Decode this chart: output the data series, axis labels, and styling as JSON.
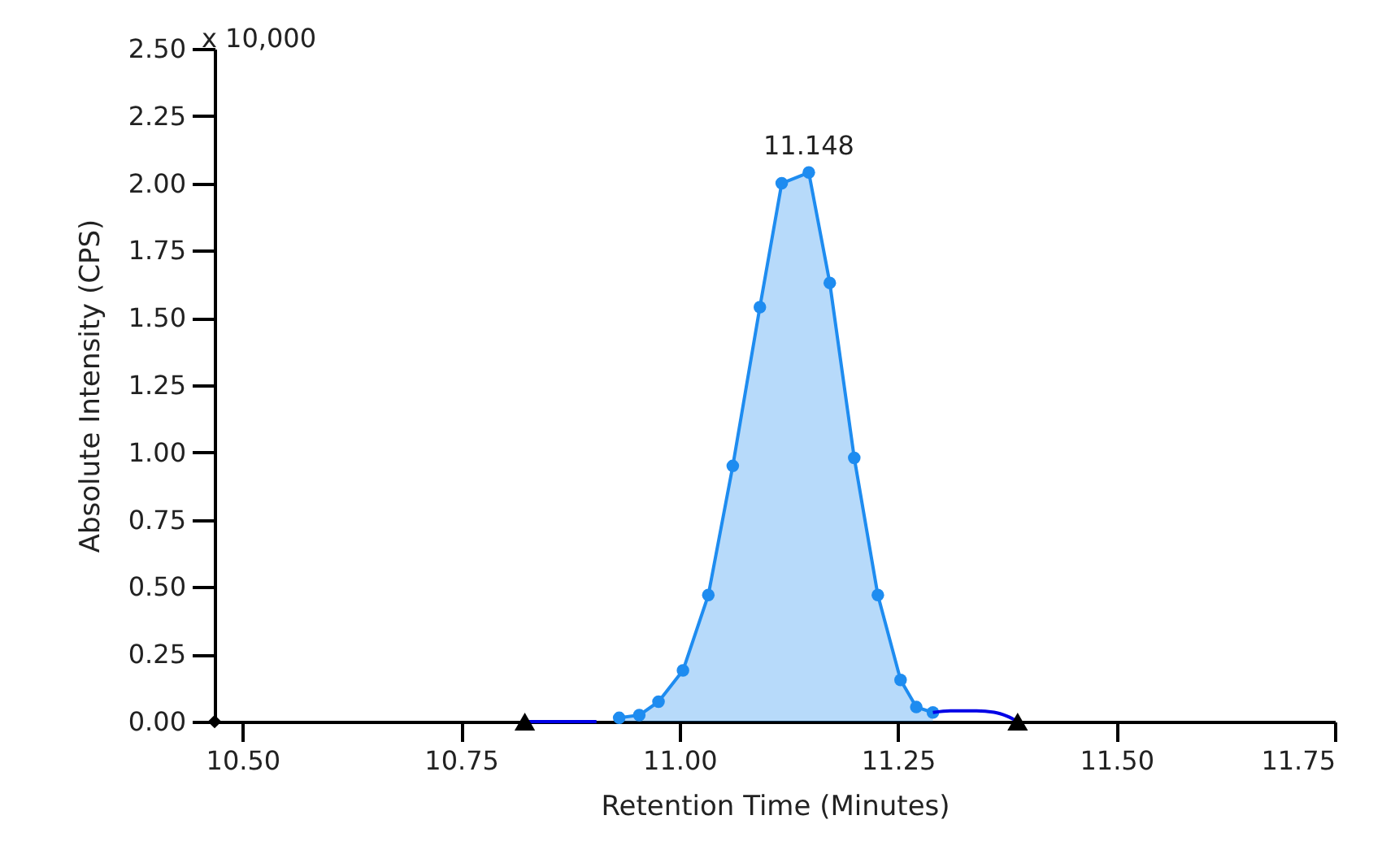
{
  "chart_data": {
    "type": "area",
    "xlabel": "Retention Time (Minutes)",
    "ylabel": "Absolute Intensity (CPS)",
    "annotations": [
      "x 10,000",
      {
        "text": "11.148",
        "x": 11.148,
        "y": 2.04
      }
    ],
    "xlim": [
      10.468,
      11.75
    ],
    "xticks": [
      {
        "value": 10.5,
        "label": "10.50"
      },
      {
        "value": 10.75,
        "label": "10.75"
      },
      {
        "value": 11,
        "label": "11.00"
      },
      {
        "value": 11.25,
        "label": "11.25"
      },
      {
        "value": 11.5,
        "label": "11.50"
      },
      {
        "value": 11.75,
        "label": "11.75"
      }
    ],
    "ylim": [
      0,
      2.5
    ],
    "yticks": [
      {
        "value": 0,
        "label": "0.00"
      },
      {
        "value": 0.25,
        "label": "0.25"
      },
      {
        "value": 0.5,
        "label": "0.50"
      },
      {
        "value": 0.75,
        "label": "0.75"
      },
      {
        "value": 1,
        "label": "1.00"
      },
      {
        "value": 1.25,
        "label": "1.25"
      },
      {
        "value": 1.5,
        "label": "1.50"
      },
      {
        "value": 1.75,
        "label": "1.75"
      },
      {
        "value": 2,
        "label": "2.00"
      },
      {
        "value": 2.25,
        "label": "2.25"
      },
      {
        "value": 2.5,
        "label": "2.50"
      }
    ],
    "series": [
      {
        "color": "#1e8cf0",
        "marker": "circle",
        "x": [
          10.931,
          10.954,
          10.976,
          11.004,
          11.033,
          11.061,
          11.092,
          11.117,
          11.148,
          11.172,
          11.2,
          11.227,
          11.253,
          11.271,
          11.29
        ],
        "values": [
          0.014,
          0.024,
          0.074,
          0.19,
          0.47,
          0.95,
          1.54,
          2.0,
          2.04,
          1.63,
          0.98,
          0.47,
          0.155,
          0.054,
          0.034
        ]
      },
      {
        "type": "line",
        "color": "#0000e6",
        "marker": "none",
        "x": [
          10.823,
          10.905
        ],
        "values": [
          0,
          0
        ]
      },
      {
        "type": "line",
        "color": "#0000e6",
        "marker": "none",
        "x": [
          11.29,
          11.31,
          11.34,
          11.36,
          11.375,
          11.387
        ],
        "values": [
          0.034,
          0.04,
          0.04,
          0.035,
          0.02,
          0
        ]
      },
      {
        "type": "scatter",
        "color": "#000000",
        "marker": "triangle",
        "x": [
          10.823,
          11.387
        ],
        "values": [
          0,
          0
        ]
      },
      {
        "type": "scatter",
        "color": "#000000",
        "marker": "diamond",
        "x": [
          10.468
        ],
        "values": [
          0
        ]
      }
    ]
  }
}
